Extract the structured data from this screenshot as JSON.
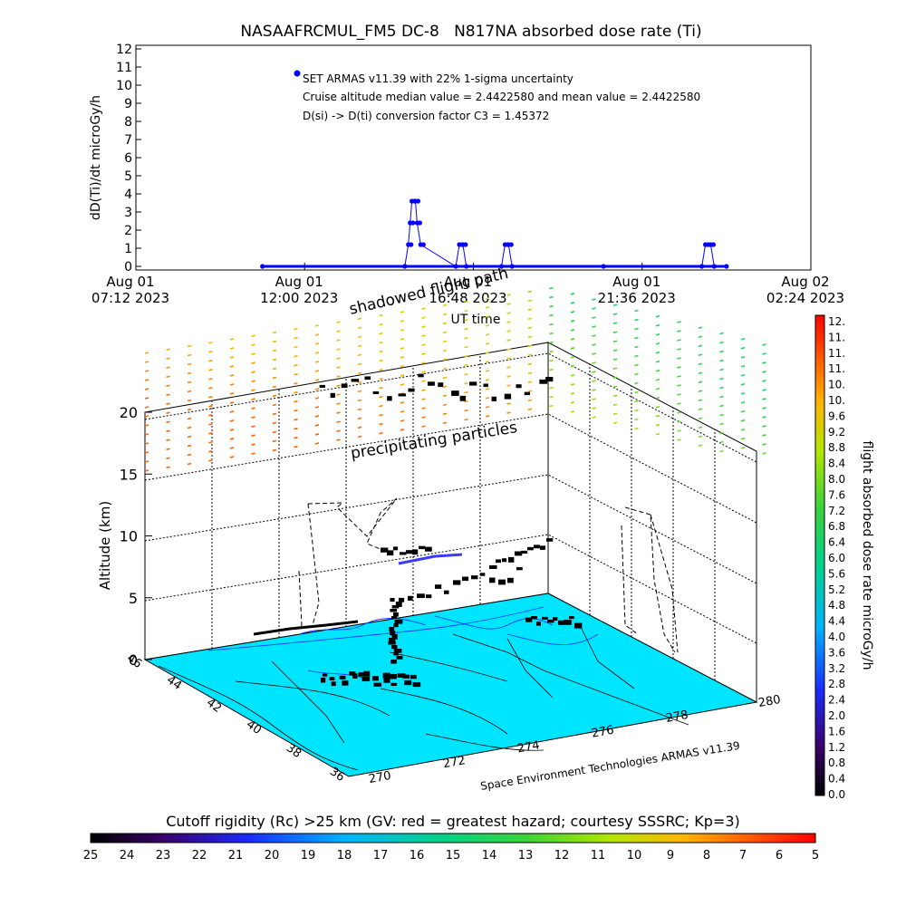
{
  "chart_data": [
    {
      "type": "line",
      "title": "NASAAFRCMUL_FM5 DC-8   N817NA absorbed dose rate (Ti)",
      "xlabel": "UT time",
      "ylabel": "dD(Ti)/dt microGy/h",
      "ylim": [
        0,
        12
      ],
      "yticks": [
        "0",
        "1",
        "2",
        "3",
        "4",
        "5",
        "6",
        "7",
        "8",
        "9",
        "10",
        "11",
        "12"
      ],
      "xlim_hours": [
        7.2,
        26.4
      ],
      "xticks": [
        {
          "hour": 7.2,
          "line1": "Aug 01",
          "line2": "07:12 2023"
        },
        {
          "hour": 12.0,
          "line1": "Aug 01",
          "line2": "12:00 2023"
        },
        {
          "hour": 16.8,
          "line1": "Aug 01",
          "line2": "16:48 2023"
        },
        {
          "hour": 21.6,
          "line1": "Aug 01",
          "line2": "21:36 2023"
        },
        {
          "hour": 26.4,
          "line1": "Aug 02",
          "line2": "02:24 2023"
        }
      ],
      "grid": false,
      "legend": {
        "placement": "top-left",
        "lines": [
          "SET ARMAS v11.39 with 22% 1-sigma uncertainty",
          "Cruise altitude median value = 2.4422580 and mean value = 2.4422580",
          "D(si) -> D(ti) conversion factor C3 = 1.45372"
        ]
      },
      "series": [
        {
          "color": "#0000ff",
          "x_hours": [
            10.8,
            14.85,
            14.95,
            15.0,
            15.05,
            15.15,
            15.2,
            15.3,
            16.3,
            16.4,
            16.5,
            16.6,
            17.6,
            17.7,
            17.8,
            17.9,
            20.5,
            23.3,
            23.4,
            23.55,
            23.65,
            24.0
          ],
          "values": [
            0,
            0,
            1.2,
            2.4,
            3.6,
            3.6,
            2.4,
            1.2,
            0,
            1.2,
            1.2,
            0,
            0,
            1.2,
            1.2,
            0,
            0,
            0,
            1.2,
            1.2,
            0,
            0
          ]
        }
      ]
    },
    {
      "type": "scatter",
      "title": "",
      "xlabel": "",
      "ylabel": "Altitude (km)",
      "zlim": [
        0,
        22
      ],
      "zticks": [
        "0",
        "5",
        "10",
        "15",
        "20"
      ],
      "lon_ticks": [
        "270",
        "272",
        "274",
        "276",
        "278",
        "280"
      ],
      "lat_ticks": [
        "36",
        "38",
        "40",
        "42",
        "44",
        "46"
      ],
      "annotations": [
        "shadowed flight path",
        "precipitating particles"
      ],
      "footer": "Space Environment Technologies ARMAS v11.39",
      "surface_color": "#00e5ff"
    },
    {
      "type": "heatmap",
      "title": "flight absorbed dose rate microGy/h",
      "orientation": "vertical",
      "range": [
        0,
        12.4
      ],
      "tick_labels": [
        "0.0",
        "0.4",
        "0.8",
        "1.2",
        "1.6",
        "2.0",
        "2.4",
        "2.8",
        "3.2",
        "3.6",
        "4.0",
        "4.4",
        "4.8",
        "5.2",
        "5.6",
        "6.0",
        "6.4",
        "6.8",
        "7.2",
        "7.6",
        "8.0",
        "8.4",
        "8.8",
        "9.2",
        "9.6",
        "10.",
        "10.",
        "11.",
        "11.",
        "11.",
        "12."
      ]
    },
    {
      "type": "heatmap",
      "title": "Cutoff rigidity (Rc) >25 km (GV: red = greatest hazard; courtesy SSSRC; Kp=3)",
      "orientation": "horizontal",
      "tick_labels": [
        "25",
        "24",
        "23",
        "22",
        "21",
        "20",
        "19",
        "18",
        "17",
        "16",
        "15",
        "14",
        "13",
        "12",
        "11",
        "10",
        "9",
        "8",
        "7",
        "6",
        "5"
      ]
    }
  ]
}
